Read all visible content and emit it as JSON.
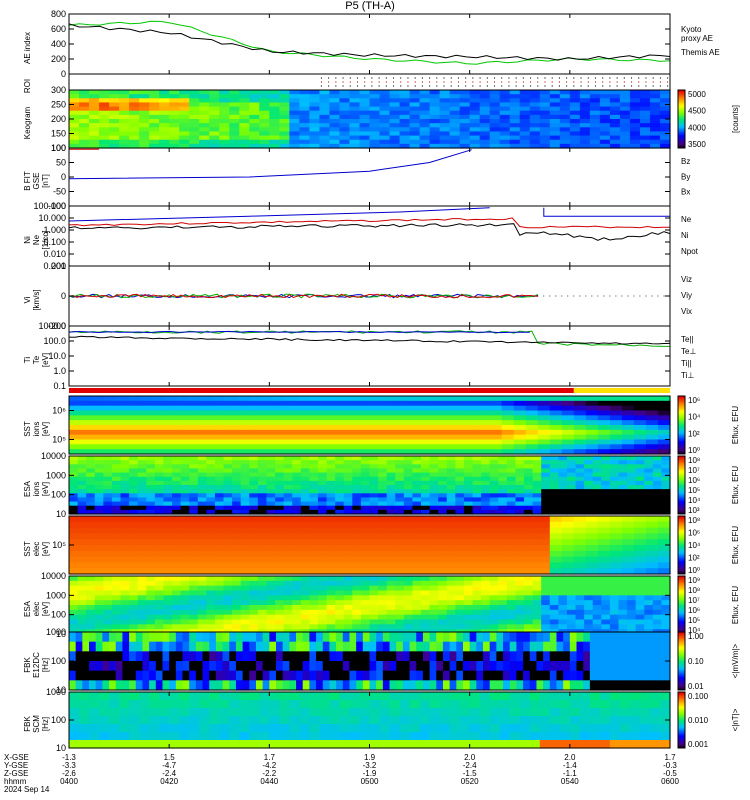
{
  "title": "P5 (TH-A)",
  "footer": {
    "rows": [
      "X-GSE",
      "Y-GSE",
      "Z-GSE",
      "hhmm",
      "2024 Sep 14"
    ],
    "values": [
      {
        "x": "-1.3",
        "y": "-3.3",
        "z": "-2.6",
        "t": "0400"
      },
      {
        "x": "1.5",
        "y": "-4.7",
        "z": "-2.4",
        "t": "0420"
      },
      {
        "x": "1.7",
        "y": "-4.2",
        "z": "-2.2",
        "t": "0440"
      },
      {
        "x": "1.9",
        "y": "-3.2",
        "z": "-1.9",
        "t": "0500"
      },
      {
        "x": "2.0",
        "y": "-2.4",
        "z": "-1.5",
        "t": "0520"
      },
      {
        "x": "2.0",
        "y": "-1.4",
        "z": "-1.1",
        "t": "0540"
      },
      {
        "x": "1.7",
        "y": "-0.3",
        "z": "-0.5",
        "t": "0600"
      }
    ]
  },
  "panels": {
    "ae": {
      "ylabel": "AE index",
      "ticks": [
        "800",
        "600",
        "400",
        "200",
        "0"
      ],
      "legend": [
        {
          "text": "Kyoto\nproxy AE",
          "color": "#00c800"
        },
        {
          "text": "Themis AE",
          "color": "#000000"
        }
      ]
    },
    "roi": {
      "ylabel": "ROI"
    },
    "keogram": {
      "ylabel": "Keogram",
      "ticks": [
        "300",
        "250",
        "200",
        "150",
        "100"
      ],
      "cbar_ticks": [
        "5000",
        "4500",
        "4000",
        "3500"
      ],
      "cbar_label": "[counts]"
    },
    "bfield": {
      "ylabel": "B FIT\nGSE\n[nT]",
      "ticks": [
        "100",
        "50",
        "0",
        "-50",
        "-100"
      ],
      "legend": [
        {
          "text": "Bz",
          "color": "#d00000"
        },
        {
          "text": "By",
          "color": "#00b000"
        },
        {
          "text": "Bx",
          "color": "#0000d0"
        }
      ]
    },
    "density": {
      "ylabel": "Ni\nNe\n[1/cc]",
      "ticks": [
        "100.000",
        "10.000",
        "1.000",
        "0.100",
        "0.010",
        "0.001"
      ],
      "legend": [
        {
          "text": "Ne",
          "color": "#d00000"
        },
        {
          "text": "Ni",
          "color": "#000000"
        },
        {
          "text": "Npot",
          "color": "#0000d0"
        }
      ]
    },
    "velocity": {
      "ylabel": "Vi\n[km/s]",
      "ticks": [
        "200",
        "0",
        "-200"
      ],
      "legend": [
        {
          "text": "Viz",
          "color": "#d00000"
        },
        {
          "text": "Viy",
          "color": "#00b000"
        },
        {
          "text": "Vix",
          "color": "#0000d0"
        }
      ]
    },
    "temperature": {
      "ylabel": "Ti\nTe\n[eV]",
      "ticks": [
        "1000.0",
        "100.0",
        "10.0",
        "1.0",
        "0.1"
      ],
      "legend": [
        {
          "text": "Te||",
          "color": "#000000"
        },
        {
          "text": "Te⊥",
          "color": "#d00000"
        },
        {
          "text": "Ti||",
          "color": "#00b000"
        },
        {
          "text": "Ti⊥",
          "color": "#0000d0"
        }
      ]
    },
    "sst_ion": {
      "ylabel": "SST\nions\n[eV]",
      "ticks": [
        "10⁶",
        "10⁵"
      ],
      "cbar_ticks": [
        "10⁶",
        "10⁴",
        "10²",
        "10⁰"
      ],
      "cbar_label": "Eflux, EFU"
    },
    "esa_ion": {
      "ylabel": "ESA\nions\n[eV]",
      "ticks": [
        "10000",
        "1000",
        "100",
        "10"
      ],
      "cbar_ticks": [
        "10⁸",
        "10⁷",
        "10⁶",
        "10⁵",
        "10⁴",
        "10³"
      ],
      "cbar_label": "Eflux, EFU"
    },
    "sst_elec": {
      "ylabel": "SST\nelec\n[eV]",
      "ticks": [
        "10⁵"
      ],
      "cbar_ticks": [
        "10⁸",
        "10⁶",
        "10⁴",
        "10²",
        "10⁰"
      ],
      "cbar_label": "Eflux, EFU"
    },
    "esa_elec": {
      "ylabel": "ESA\nelec\n[eV]",
      "ticks": [
        "10000",
        "1000",
        "100",
        "10"
      ],
      "cbar_ticks": [
        "10⁹",
        "10⁸",
        "10⁷",
        "10⁶",
        "10⁵",
        "10⁴"
      ],
      "cbar_label": "Eflux, EFU"
    },
    "fbk_e": {
      "ylabel": "FBK\nE12DC\n[Hz]",
      "ticks": [
        "1000",
        "100",
        "10"
      ],
      "cbar_ticks": [
        "1.00",
        "0.10",
        "0.01"
      ],
      "cbar_label": "<|mV/m|>"
    },
    "fbk_b": {
      "ylabel": "FBK\nSCM\n[Hz]",
      "ticks": [
        "1000",
        "100",
        "10"
      ],
      "cbar_ticks": [
        "0.100",
        "0.010",
        "0.001"
      ],
      "cbar_label": "<|nT|>"
    }
  },
  "chart_data": {
    "type": "line",
    "title": "P5 (TH-A)",
    "x": [
      "0400",
      "0420",
      "0440",
      "0500",
      "0520",
      "0540",
      "0600"
    ],
    "series": [
      {
        "name": "Kyoto proxy AE",
        "values": [
          650,
          700,
          300,
          200,
          140,
          200,
          180
        ]
      },
      {
        "name": "Themis AE",
        "values": [
          650,
          550,
          300,
          250,
          230,
          200,
          250
        ]
      },
      {
        "name": "Ne",
        "values": [
          3.0,
          4.0,
          5.0,
          8.0,
          10.0,
          2.0,
          1.0
        ]
      },
      {
        "name": "Ni",
        "values": [
          2.0,
          2.0,
          3.0,
          3.0,
          2.0,
          0.2,
          0.3
        ]
      },
      {
        "name": "Npot",
        "values": [
          10,
          20,
          30,
          60,
          100,
          30,
          30
        ]
      }
    ]
  }
}
